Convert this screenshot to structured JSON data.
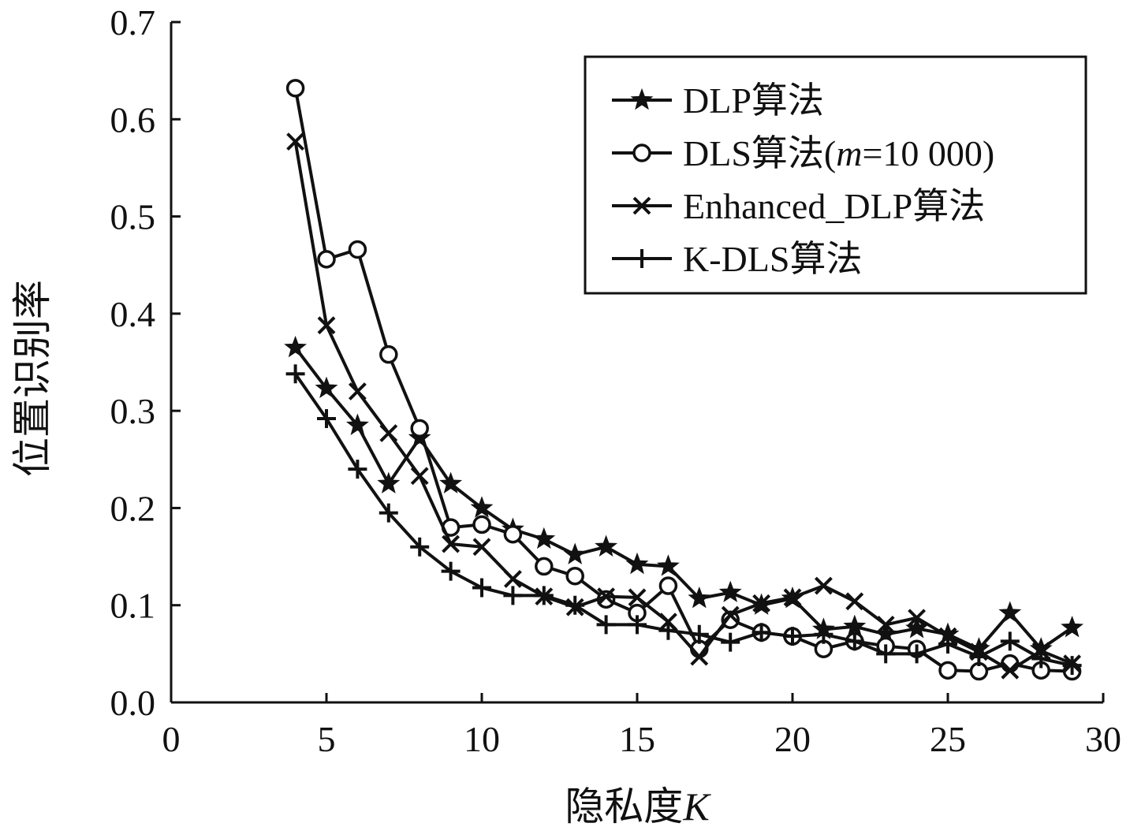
{
  "chart_data": {
    "type": "line",
    "xlabel_text": "隐私度",
    "xlabel_var": "K",
    "ylabel": "位置识别率",
    "xlim": [
      0,
      30
    ],
    "ylim": [
      0,
      0.7
    ],
    "xticks": [
      0,
      5,
      10,
      15,
      20,
      25,
      30
    ],
    "yticks": [
      "0.0",
      "0.1",
      "0.2",
      "0.3",
      "0.4",
      "0.5",
      "0.6",
      "0.7"
    ],
    "x": [
      4,
      5,
      6,
      7,
      8,
      9,
      10,
      11,
      12,
      13,
      14,
      15,
      16,
      17,
      18,
      19,
      20,
      21,
      22,
      23,
      24,
      25,
      26,
      27,
      28,
      29
    ],
    "legend_position": "top-right",
    "series": [
      {
        "name": "DLP算法",
        "marker": "star",
        "values": [
          0.365,
          0.323,
          0.285,
          0.225,
          0.272,
          0.225,
          0.2,
          0.178,
          0.168,
          0.152,
          0.16,
          0.142,
          0.14,
          0.107,
          0.113,
          0.1,
          0.107,
          0.075,
          0.078,
          0.07,
          0.076,
          0.07,
          0.055,
          0.092,
          0.055,
          0.077
        ]
      },
      {
        "name_prefix": "DLS算法(",
        "name_var": "m",
        "name_suffix": "=10 000)",
        "marker": "circle",
        "values": [
          0.632,
          0.456,
          0.466,
          0.358,
          0.282,
          0.18,
          0.183,
          0.173,
          0.14,
          0.13,
          0.106,
          0.092,
          0.12,
          0.055,
          0.085,
          0.072,
          0.068,
          0.055,
          0.063,
          0.058,
          0.055,
          0.033,
          0.032,
          0.04,
          0.033,
          0.032
        ]
      },
      {
        "name": "Enhanced_DLP算法",
        "marker": "x",
        "values": [
          0.577,
          0.388,
          0.32,
          0.277,
          0.233,
          0.163,
          0.16,
          0.127,
          0.109,
          0.098,
          0.109,
          0.108,
          0.083,
          0.047,
          0.09,
          0.102,
          0.108,
          0.12,
          0.104,
          0.08,
          0.087,
          0.068,
          0.052,
          0.033,
          0.053,
          0.04
        ]
      },
      {
        "name": "K-DLS算法",
        "marker": "plus",
        "values": [
          0.338,
          0.292,
          0.24,
          0.195,
          0.16,
          0.135,
          0.118,
          0.11,
          0.11,
          0.1,
          0.08,
          0.08,
          0.074,
          0.07,
          0.062,
          0.072,
          0.068,
          0.07,
          0.063,
          0.05,
          0.05,
          0.06,
          0.047,
          0.063,
          0.045,
          0.038
        ]
      }
    ]
  }
}
